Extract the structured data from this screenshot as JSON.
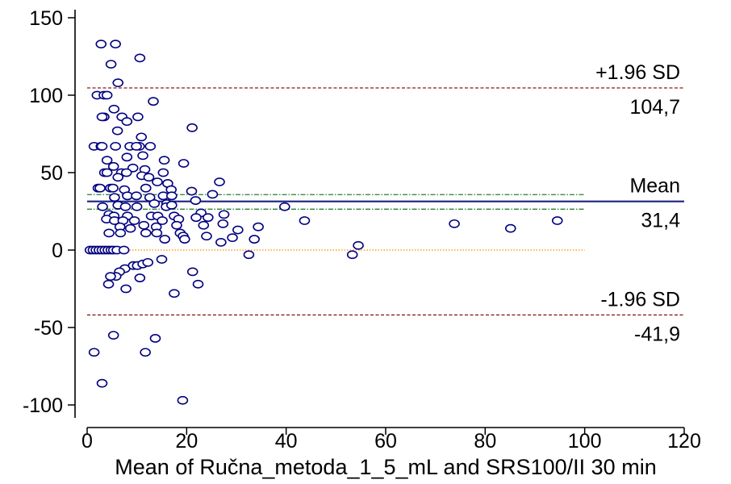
{
  "chart_data": {
    "type": "scatter",
    "title": "",
    "xlabel": "Mean of Ručna_metoda_1_5_mL and SRS100/II 30 min",
    "ylabel": "",
    "xlim": [
      0,
      120
    ],
    "ylim": [
      -100,
      150
    ],
    "x_ticks": [
      "0",
      "20",
      "40",
      "60",
      "80",
      "100",
      "120"
    ],
    "y_ticks": [
      "150",
      "100",
      "50",
      "0",
      "-50",
      "-100"
    ],
    "grid": false,
    "reference_lines": [
      {
        "label": "+1.96 SD",
        "value_label": "104,7",
        "y": 104.7,
        "x_range": [
          0,
          120
        ],
        "style": "dashed",
        "color": "#8b1a1a"
      },
      {
        "label": "Mean",
        "value_label": "31,4",
        "y": 31.4,
        "x_range": [
          0,
          120
        ],
        "style": "solid",
        "color": "#1a237e"
      },
      {
        "label": "",
        "value_label": "",
        "y": 35.8,
        "x_range": [
          0,
          100
        ],
        "style": "dashdot",
        "color": "#2e7d32"
      },
      {
        "label": "",
        "value_label": "",
        "y": 26.4,
        "x_range": [
          0,
          100
        ],
        "style": "dashdot",
        "color": "#2e7d32"
      },
      {
        "label": "-1.96 SD",
        "value_label": "-41,9",
        "y": -41.9,
        "x_range": [
          0,
          120
        ],
        "style": "dashed",
        "color": "#8b1a1a"
      },
      {
        "label": "",
        "value_label": "",
        "y": 0,
        "x_range": [
          0,
          100
        ],
        "style": "dotted",
        "color": "#ff8c00"
      }
    ],
    "marker_color": "#000080",
    "points": [
      [
        2.8,
        133
      ],
      [
        5.7,
        133
      ],
      [
        10.6,
        124
      ],
      [
        4.8,
        120
      ],
      [
        6.2,
        108
      ],
      [
        13.3,
        96
      ],
      [
        2.0,
        100
      ],
      [
        3.4,
        100
      ],
      [
        4.0,
        100
      ],
      [
        5.4,
        91
      ],
      [
        3.4,
        86
      ],
      [
        3.0,
        86
      ],
      [
        7.0,
        86
      ],
      [
        10.2,
        86
      ],
      [
        8.0,
        83
      ],
      [
        21.1,
        79
      ],
      [
        6.1,
        77
      ],
      [
        10.9,
        73
      ],
      [
        1.4,
        67
      ],
      [
        2.8,
        67
      ],
      [
        3.0,
        67
      ],
      [
        5.7,
        67
      ],
      [
        8.6,
        67
      ],
      [
        10.5,
        67
      ],
      [
        9.9,
        67
      ],
      [
        12.7,
        67
      ],
      [
        15.5,
        58
      ],
      [
        19.4,
        56
      ],
      [
        4.0,
        58
      ],
      [
        11.2,
        61
      ],
      [
        8.0,
        60
      ],
      [
        5.3,
        54
      ],
      [
        9.2,
        53
      ],
      [
        3.5,
        50
      ],
      [
        4.0,
        50
      ],
      [
        6.9,
        50
      ],
      [
        7.9,
        50
      ],
      [
        11.6,
        52
      ],
      [
        15.3,
        50
      ],
      [
        6.2,
        47
      ],
      [
        11.0,
        48
      ],
      [
        12.4,
        47
      ],
      [
        14.1,
        44
      ],
      [
        16.2,
        43
      ],
      [
        26.6,
        44
      ],
      [
        2.2,
        40
      ],
      [
        2.6,
        40
      ],
      [
        4.7,
        40
      ],
      [
        5.2,
        40
      ],
      [
        7.5,
        39
      ],
      [
        11.8,
        40
      ],
      [
        16.9,
        39
      ],
      [
        21.0,
        38
      ],
      [
        25.2,
        36
      ],
      [
        5.5,
        34
      ],
      [
        8.1,
        35
      ],
      [
        9.9,
        35
      ],
      [
        12.6,
        34
      ],
      [
        15.3,
        35
      ],
      [
        17.0,
        35
      ],
      [
        21.8,
        32
      ],
      [
        13.5,
        30
      ],
      [
        16.0,
        30
      ],
      [
        3.1,
        28
      ],
      [
        6.2,
        29
      ],
      [
        7.7,
        28
      ],
      [
        10.0,
        28
      ],
      [
        15.9,
        28
      ],
      [
        17.0,
        29
      ],
      [
        39.7,
        28
      ],
      [
        4.4,
        23
      ],
      [
        5.4,
        22
      ],
      [
        8.1,
        22
      ],
      [
        12.9,
        22
      ],
      [
        14.2,
        22
      ],
      [
        17.5,
        22
      ],
      [
        22.9,
        24
      ],
      [
        27.5,
        23
      ],
      [
        3.9,
        20
      ],
      [
        5.5,
        19
      ],
      [
        7.2,
        19
      ],
      [
        9.5,
        19
      ],
      [
        15.1,
        19
      ],
      [
        18.4,
        20
      ],
      [
        21.9,
        21
      ],
      [
        24.3,
        21
      ],
      [
        43.7,
        19
      ],
      [
        6.6,
        15
      ],
      [
        8.7,
        14
      ],
      [
        11.4,
        16
      ],
      [
        13.9,
        15
      ],
      [
        18.0,
        16
      ],
      [
        23.4,
        16
      ],
      [
        27.3,
        17
      ],
      [
        30.3,
        13
      ],
      [
        34.4,
        15
      ],
      [
        73.8,
        17
      ],
      [
        85.1,
        14
      ],
      [
        94.5,
        19
      ],
      [
        4.4,
        11
      ],
      [
        6.7,
        11
      ],
      [
        11.8,
        11
      ],
      [
        14.0,
        11
      ],
      [
        18.7,
        11
      ],
      [
        19.3,
        9
      ],
      [
        24.0,
        9
      ],
      [
        29.2,
        8
      ],
      [
        15.6,
        7
      ],
      [
        19.6,
        7
      ],
      [
        26.9,
        5
      ],
      [
        33.6,
        7
      ],
      [
        54.5,
        3
      ],
      [
        53.3,
        -3
      ],
      [
        32.5,
        -3
      ],
      [
        0.6,
        0
      ],
      [
        1.2,
        0
      ],
      [
        1.8,
        0
      ],
      [
        2.4,
        0
      ],
      [
        3.0,
        0
      ],
      [
        3.6,
        0
      ],
      [
        4.2,
        0
      ],
      [
        4.8,
        0
      ],
      [
        5.3,
        0
      ],
      [
        6.0,
        0
      ],
      [
        7.4,
        0
      ],
      [
        15.0,
        -6
      ],
      [
        7.6,
        -12
      ],
      [
        9.3,
        -10
      ],
      [
        10.1,
        -10
      ],
      [
        11.2,
        -9
      ],
      [
        12.2,
        -8
      ],
      [
        6.5,
        -14
      ],
      [
        5.8,
        -17
      ],
      [
        4.7,
        -17
      ],
      [
        10.6,
        -18
      ],
      [
        4.3,
        -22
      ],
      [
        21.2,
        -14
      ],
      [
        22.3,
        -22
      ],
      [
        7.8,
        -25
      ],
      [
        17.5,
        -28
      ],
      [
        5.3,
        -55
      ],
      [
        13.7,
        -57
      ],
      [
        1.4,
        -66
      ],
      [
        11.7,
        -66
      ],
      [
        3.0,
        -86
      ],
      [
        19.2,
        -97
      ]
    ]
  }
}
